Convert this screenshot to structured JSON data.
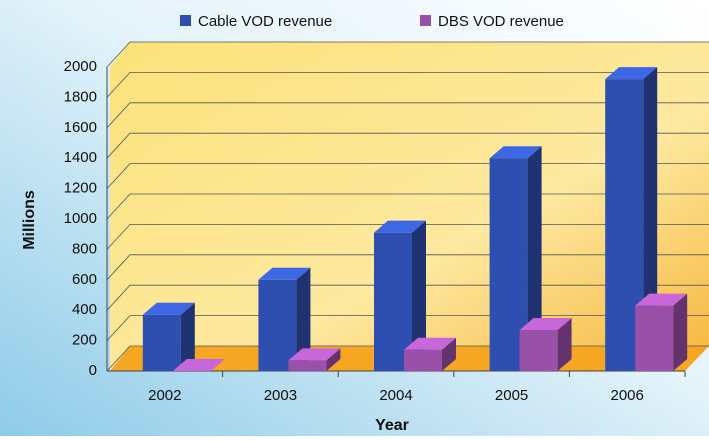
{
  "chart_data": {
    "type": "bar3d",
    "x_label": "Year",
    "y_label": "Millions",
    "categories": [
      "2002",
      "2003",
      "2004",
      "2005",
      "2006"
    ],
    "series": [
      {
        "name": "Cable VOD revenue",
        "color": "#2f4fb0",
        "values": [
          370,
          600,
          910,
          1400,
          1920
        ]
      },
      {
        "name": "DBS VOD revenue",
        "color": "#9a4fa8",
        "values": [
          0,
          70,
          140,
          270,
          430
        ]
      }
    ],
    "ylim": [
      0,
      2000
    ],
    "yticks": [
      0,
      200,
      400,
      600,
      800,
      1000,
      1200,
      1400,
      1600,
      1800,
      2000
    ],
    "grid": true
  }
}
